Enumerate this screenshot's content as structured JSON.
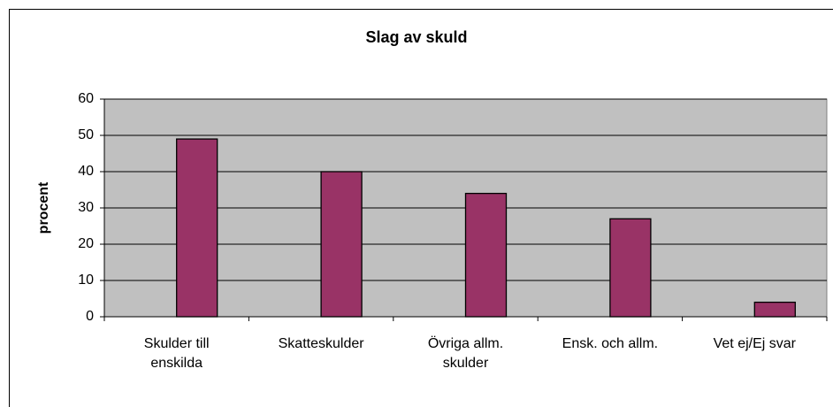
{
  "chart_data": {
    "type": "bar",
    "title": "Slag av skuld",
    "y_label": "procent",
    "categories": [
      "Skulder till enskilda",
      "Skatteskulder",
      "Övriga allm. skulder",
      "Ensk. och allm.",
      "Vet ej/Ej svar"
    ],
    "values": [
      49,
      40,
      34,
      27,
      4
    ],
    "color": "#993366",
    "ylim": [
      0,
      60
    ],
    "yticks": [
      0,
      10,
      20,
      30,
      40,
      50,
      60
    ],
    "grid": true
  }
}
